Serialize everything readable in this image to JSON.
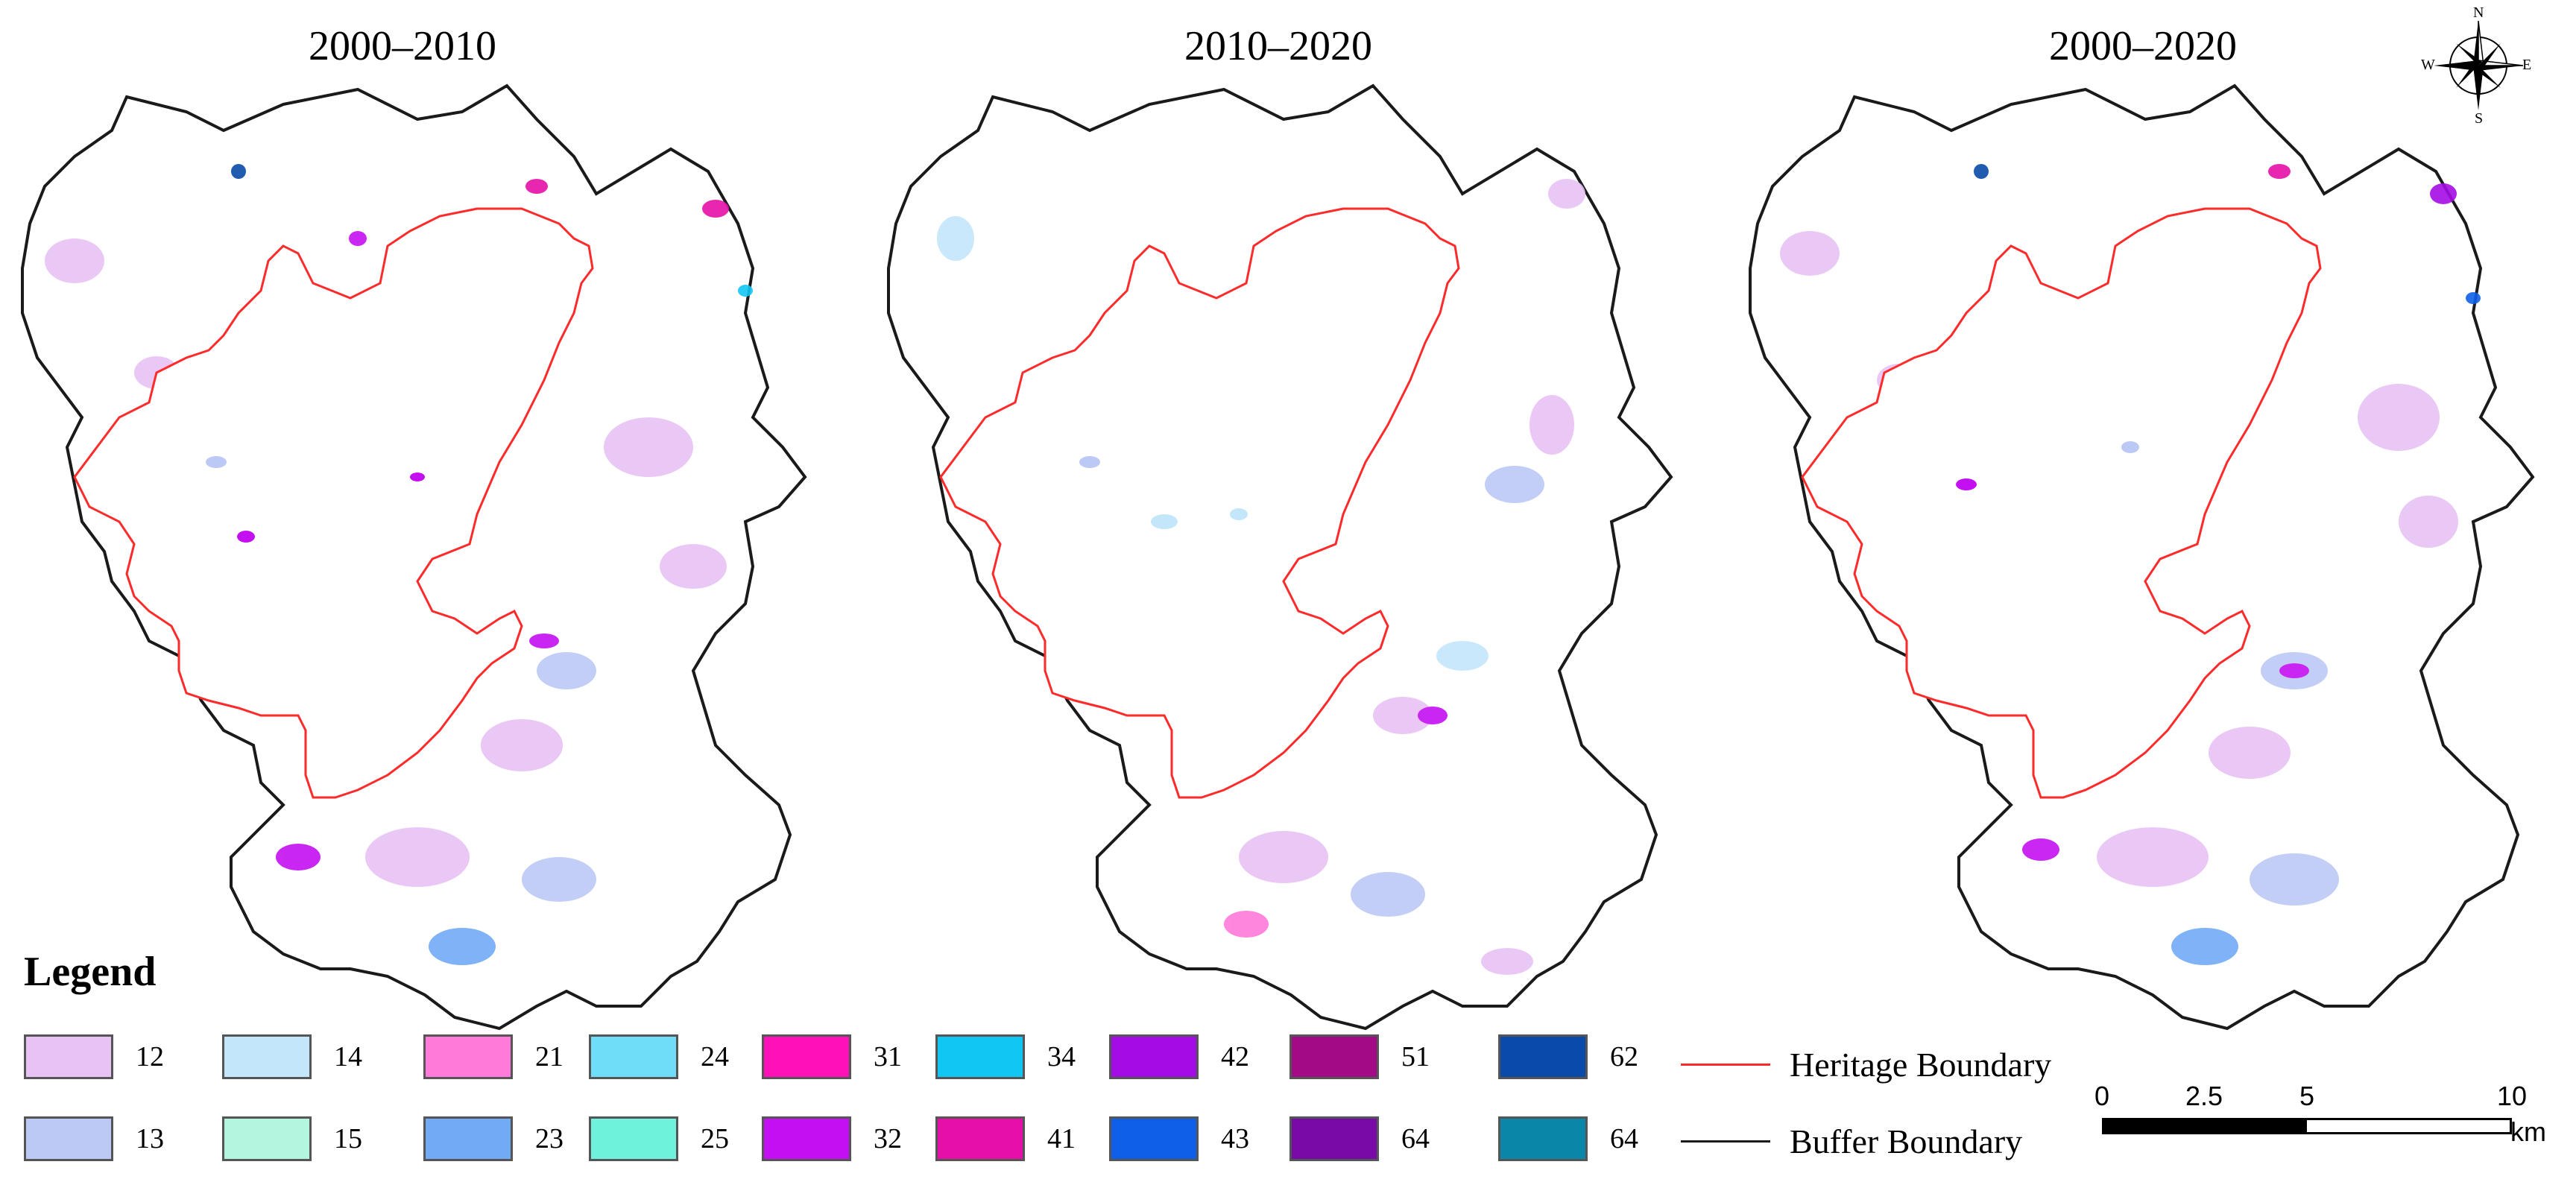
{
  "titles": [
    "2000–2010",
    "2010–2020",
    "2000–2020"
  ],
  "compass": {
    "n": "N",
    "s": "S",
    "e": "E",
    "w": "W"
  },
  "legend": {
    "title": "Legend",
    "items": [
      {
        "code": "12",
        "color": "#e8c2f5"
      },
      {
        "code": "13",
        "color": "#bcc9f5"
      },
      {
        "code": "14",
        "color": "#c4e6fb"
      },
      {
        "code": "15",
        "color": "#b3f5de"
      },
      {
        "code": "21",
        "color": "#ff7ad9"
      },
      {
        "code": "23",
        "color": "#72aaf6"
      },
      {
        "code": "24",
        "color": "#6fdcf8"
      },
      {
        "code": "25",
        "color": "#6ff2dc"
      },
      {
        "code": "31",
        "color": "#ff10b8"
      },
      {
        "code": "32",
        "color": "#c40ff2"
      },
      {
        "code": "34",
        "color": "#12c6f4"
      },
      {
        "code": "41",
        "color": "#e610a8"
      },
      {
        "code": "42",
        "color": "#a40ce6"
      },
      {
        "code": "43",
        "color": "#0f5fe8"
      },
      {
        "code": "51",
        "color": "#a30a85"
      },
      {
        "code": "64",
        "color": "#7a0aa8"
      },
      {
        "code": "62",
        "color": "#0a4aa8"
      },
      {
        "code": "64",
        "color": "#0a86a8"
      }
    ],
    "heritage_boundary": {
      "label": "Heritage Boundary",
      "color": "#ff2a2a"
    },
    "buffer_boundary": {
      "label": "Buffer Boundary",
      "color": "#1a1a1a"
    }
  },
  "scale": {
    "ticks": [
      "0",
      "2.5",
      "5",
      "10"
    ],
    "unit": "km"
  }
}
